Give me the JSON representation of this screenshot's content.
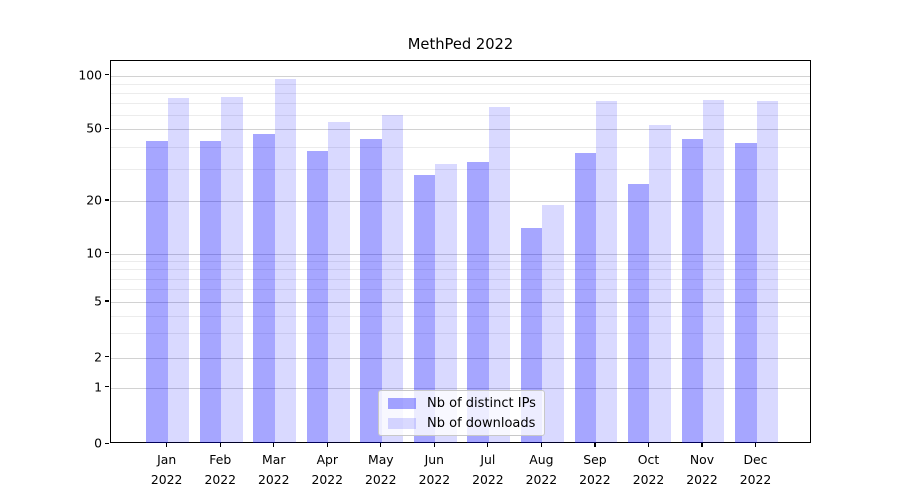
{
  "chart_data": {
    "type": "bar",
    "title": "MethPed 2022",
    "categories": [
      "Jan",
      "Feb",
      "Mar",
      "Apr",
      "May",
      "Jun",
      "Jul",
      "Aug",
      "Sep",
      "Oct",
      "Nov",
      "Dec"
    ],
    "year": "2022",
    "series": [
      {
        "name": "Nb of distinct IPs",
        "color": "rgba(0,0,255,0.35)",
        "values": [
          43,
          43,
          47,
          38,
          44,
          28,
          33,
          14,
          37,
          25,
          44,
          42
        ]
      },
      {
        "name": "Nb of downloads",
        "color": "rgba(0,0,255,0.15)",
        "values": [
          75,
          76,
          96,
          55,
          60,
          32,
          67,
          19,
          72,
          53,
          73,
          72
        ]
      }
    ],
    "yscale": "symlog",
    "yticks": [
      0,
      1,
      2,
      5,
      10,
      20,
      50,
      100
    ],
    "ylim": [
      0,
      110
    ],
    "grid": true,
    "legend_position": "lower center"
  }
}
